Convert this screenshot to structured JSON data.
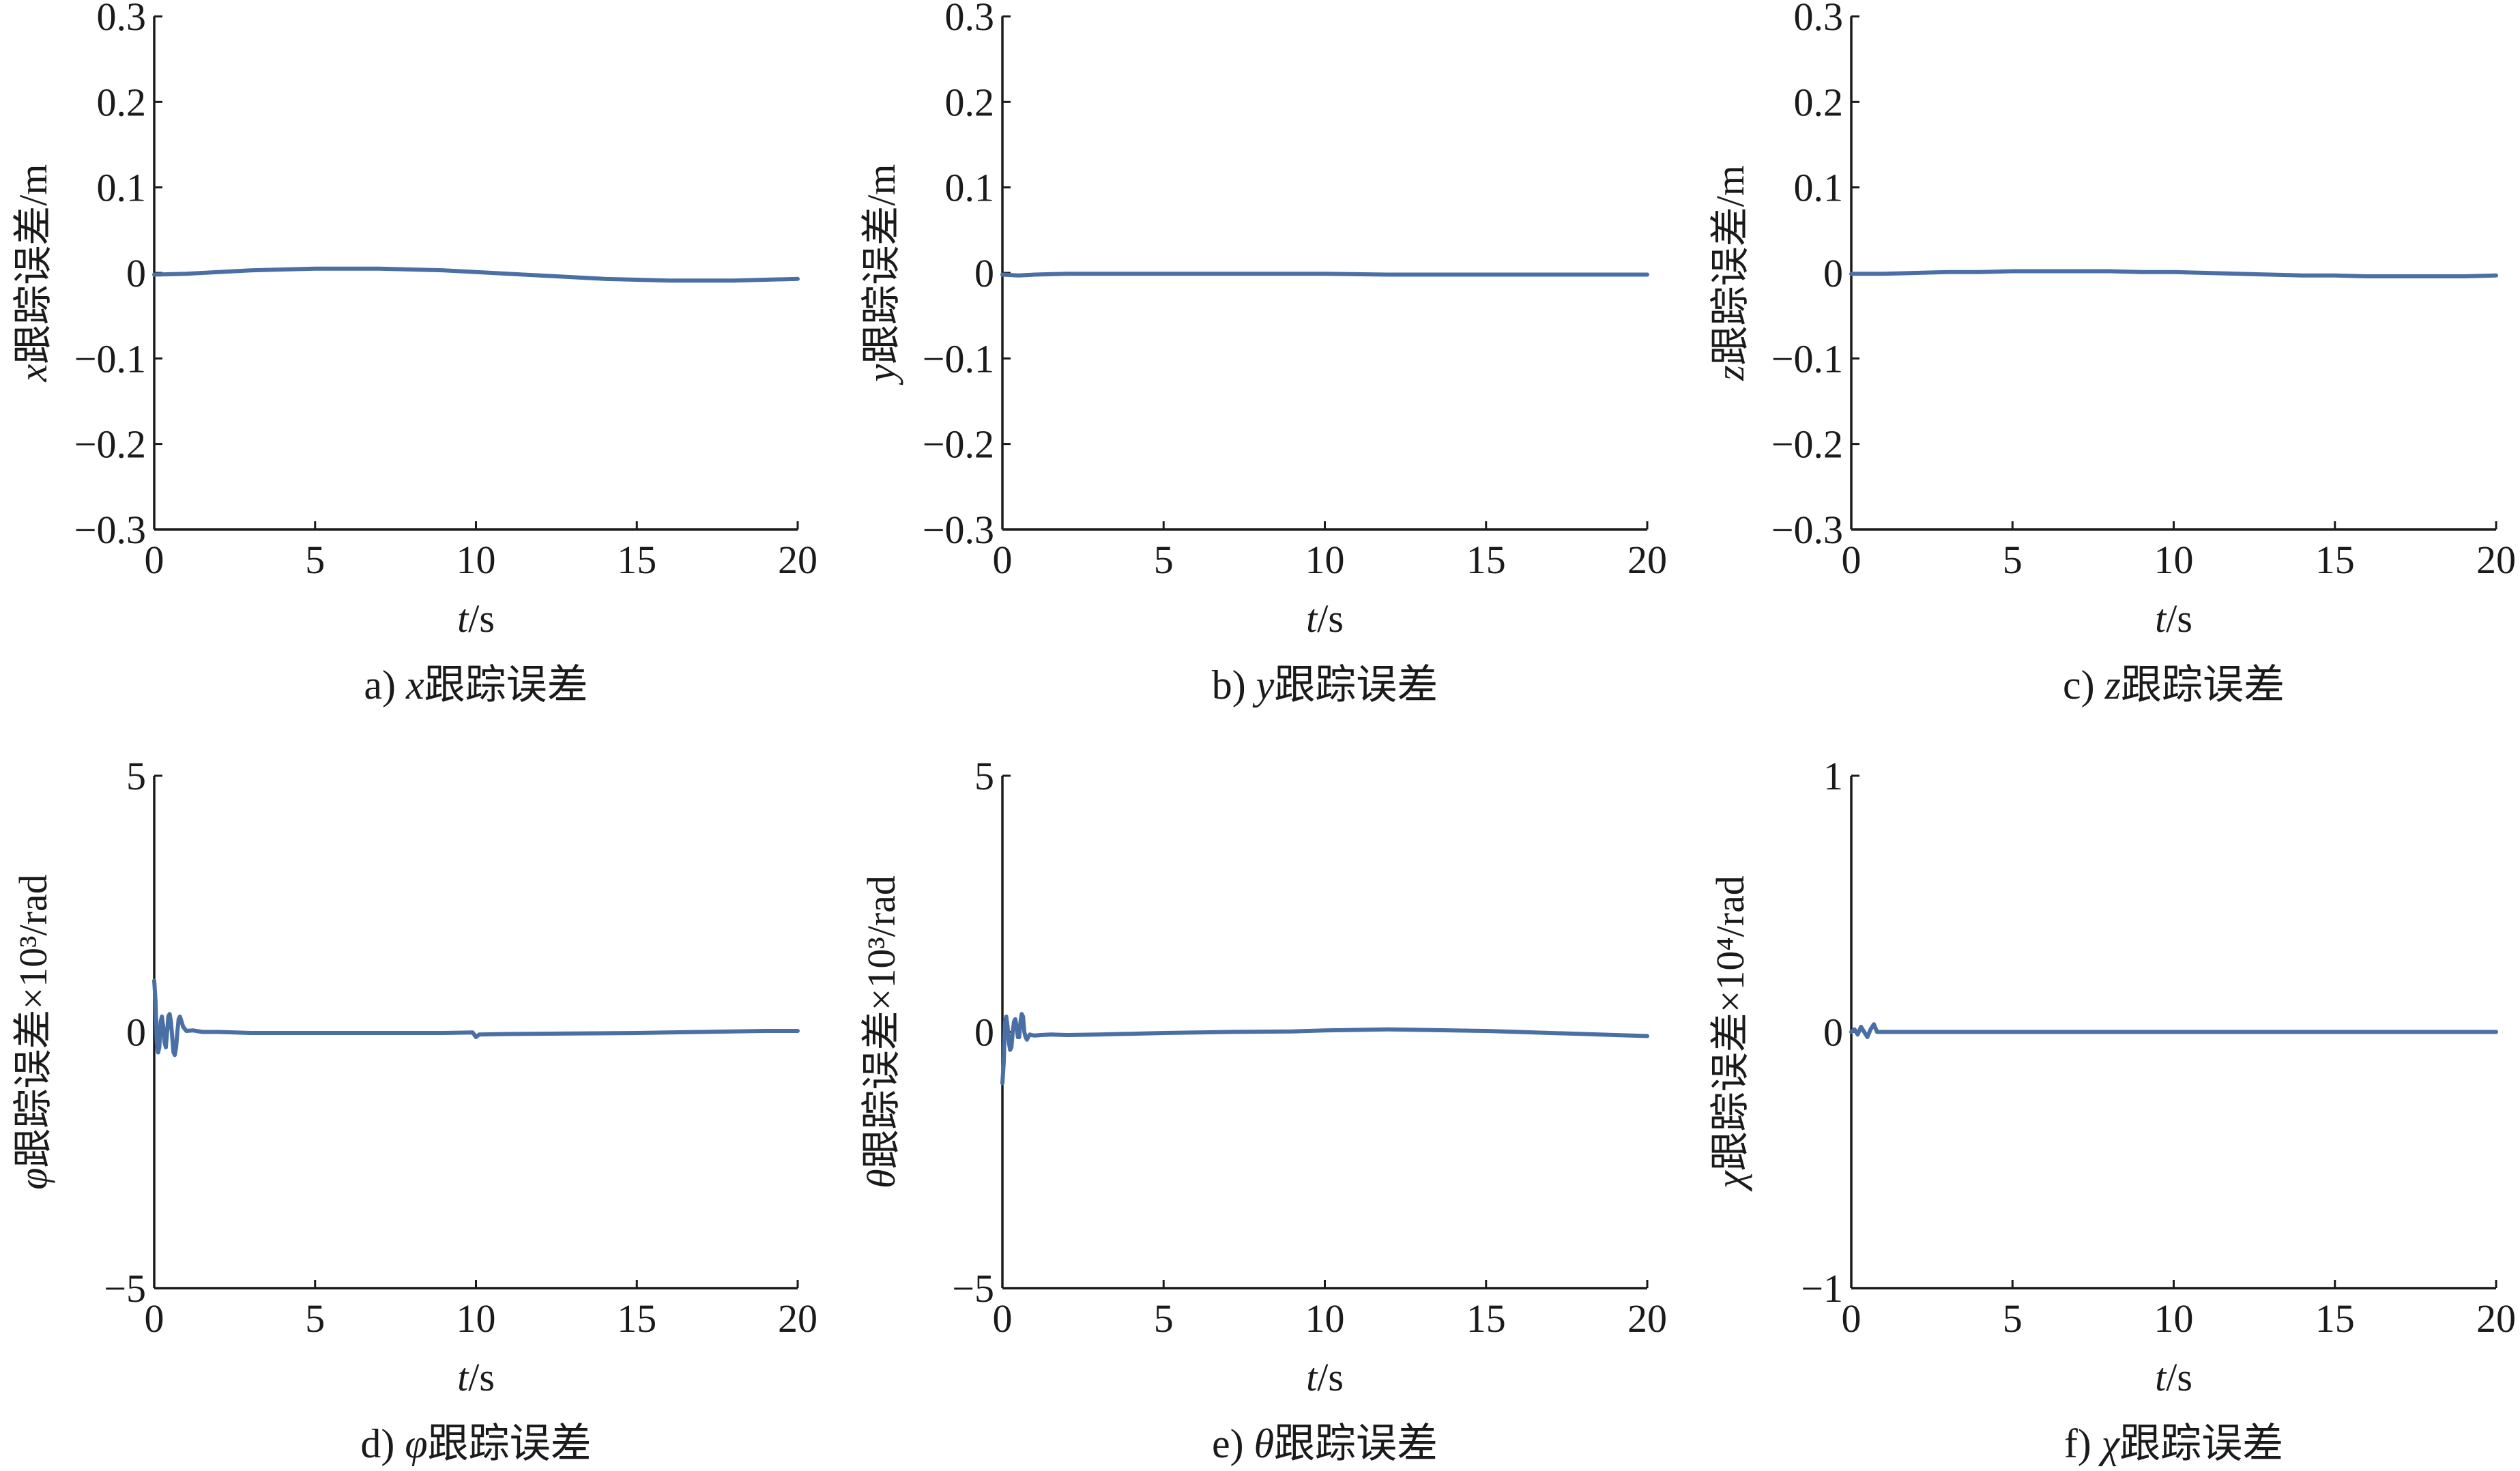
{
  "line_color": "#4a6fa5",
  "chart_data": [
    {
      "type": "line",
      "caption": "a) x跟踪误差",
      "xlabel": "t/s",
      "ylabel": "x跟踪误差/m",
      "xlim": [
        0,
        20
      ],
      "ylim": [
        -0.3,
        0.3
      ],
      "xticks": [
        0,
        5,
        10,
        15,
        20
      ],
      "xtick_labels": [
        "0",
        "5",
        "10",
        "15",
        "20"
      ],
      "yticks": [
        -0.3,
        -0.2,
        -0.1,
        0,
        0.1,
        0.2,
        0.3
      ],
      "ytick_labels": [
        "−0.3",
        "−0.2",
        "−0.1",
        "0",
        "0.1",
        "0.2",
        "0.3"
      ],
      "grid": false,
      "series": [
        {
          "x": [
            0,
            1,
            2,
            3,
            4,
            5,
            6,
            7,
            8,
            9,
            10,
            11,
            12,
            13,
            14,
            15,
            16,
            17,
            18,
            19,
            20
          ],
          "y": [
            -0.002,
            -0.001,
            0.001,
            0.003,
            0.004,
            0.005,
            0.005,
            0.005,
            0.004,
            0.003,
            0.001,
            -0.001,
            -0.003,
            -0.005,
            -0.007,
            -0.008,
            -0.009,
            -0.009,
            -0.009,
            -0.008,
            -0.007
          ]
        }
      ]
    },
    {
      "type": "line",
      "caption": "b) y跟踪误差",
      "xlabel": "t/s",
      "ylabel": "y跟踪误差/m",
      "xlim": [
        0,
        20
      ],
      "ylim": [
        -0.3,
        0.3
      ],
      "xticks": [
        0,
        5,
        10,
        15,
        20
      ],
      "xtick_labels": [
        "0",
        "5",
        "10",
        "15",
        "20"
      ],
      "yticks": [
        -0.3,
        -0.2,
        -0.1,
        0,
        0.1,
        0.2,
        0.3
      ],
      "ytick_labels": [
        "−0.3",
        "−0.2",
        "−0.1",
        "0",
        "0.1",
        "0.2",
        "0.3"
      ],
      "grid": false,
      "series": [
        {
          "x": [
            0,
            0.5,
            1,
            2,
            4,
            6,
            8,
            10,
            12,
            14,
            16,
            18,
            20
          ],
          "y": [
            -0.002,
            -0.003,
            -0.002,
            -0.001,
            -0.001,
            -0.001,
            -0.001,
            -0.001,
            -0.002,
            -0.002,
            -0.002,
            -0.002,
            -0.002
          ]
        }
      ]
    },
    {
      "type": "line",
      "caption": "c) z跟踪误差",
      "xlabel": "t/s",
      "ylabel": "z跟踪误差/m",
      "xlim": [
        0,
        20
      ],
      "ylim": [
        -0.3,
        0.3
      ],
      "xticks": [
        0,
        5,
        10,
        15,
        20
      ],
      "xtick_labels": [
        "0",
        "5",
        "10",
        "15",
        "20"
      ],
      "yticks": [
        -0.3,
        -0.2,
        -0.1,
        0,
        0.1,
        0.2,
        0.3
      ],
      "ytick_labels": [
        "−0.3",
        "−0.2",
        "−0.1",
        "0",
        "0.1",
        "0.2",
        "0.3"
      ],
      "grid": false,
      "series": [
        {
          "x": [
            0,
            1,
            2,
            3,
            4,
            5,
            6,
            7,
            8,
            9,
            10,
            11,
            12,
            13,
            14,
            15,
            16,
            17,
            18,
            19,
            20
          ],
          "y": [
            -0.001,
            -0.001,
            0.0,
            0.001,
            0.001,
            0.002,
            0.002,
            0.002,
            0.002,
            0.001,
            0.001,
            0.0,
            -0.001,
            -0.002,
            -0.003,
            -0.003,
            -0.004,
            -0.004,
            -0.004,
            -0.004,
            -0.003
          ]
        }
      ]
    },
    {
      "type": "line",
      "caption": "d) φ跟踪误差",
      "xlabel": "t/s",
      "ylabel": "φ跟踪误差×10³/rad",
      "xlim": [
        0,
        20
      ],
      "ylim": [
        -5,
        5
      ],
      "xticks": [
        0,
        5,
        10,
        15,
        20
      ],
      "xtick_labels": [
        "0",
        "5",
        "10",
        "15",
        "20"
      ],
      "yticks": [
        -5,
        0,
        5
      ],
      "ytick_labels": [
        "−5",
        "0",
        "5"
      ],
      "grid": false,
      "series": [
        {
          "x": [
            0,
            0.04,
            0.08,
            0.12,
            0.16,
            0.2,
            0.24,
            0.28,
            0.32,
            0.36,
            0.4,
            0.44,
            0.48,
            0.52,
            0.56,
            0.6,
            0.64,
            0.68,
            0.72,
            0.76,
            0.8,
            0.85,
            0.9,
            1.0,
            1.2,
            1.5,
            2,
            3,
            5,
            7,
            9,
            9.9,
            10,
            10.1,
            11,
            13,
            15,
            17,
            19,
            20
          ],
          "y": [
            1.0,
            0.6,
            -0.2,
            -0.4,
            -0.3,
            0.2,
            0.3,
            0.1,
            -0.2,
            -0.3,
            0.0,
            0.3,
            0.35,
            0.2,
            -0.1,
            -0.4,
            -0.45,
            -0.3,
            0.0,
            0.25,
            0.3,
            0.2,
            0.1,
            0.02,
            0.03,
            0.0,
            0.0,
            -0.02,
            -0.02,
            -0.02,
            -0.02,
            -0.01,
            -0.1,
            -0.05,
            -0.04,
            -0.03,
            -0.02,
            0.0,
            0.02,
            0.02
          ]
        }
      ]
    },
    {
      "type": "line",
      "caption": "e) θ跟踪误差",
      "xlabel": "t/s",
      "ylabel": "θ跟踪误差×10³/rad",
      "xlim": [
        0,
        20
      ],
      "ylim": [
        -5,
        5
      ],
      "xticks": [
        0,
        5,
        10,
        15,
        20
      ],
      "xtick_labels": [
        "0",
        "5",
        "10",
        "15",
        "20"
      ],
      "yticks": [
        -5,
        0,
        5
      ],
      "ytick_labels": [
        "−5",
        "0",
        "5"
      ],
      "grid": false,
      "series": [
        {
          "x": [
            0,
            0.04,
            0.08,
            0.12,
            0.16,
            0.2,
            0.24,
            0.28,
            0.32,
            0.36,
            0.4,
            0.44,
            0.48,
            0.52,
            0.56,
            0.6,
            0.64,
            0.68,
            0.72,
            0.76,
            0.8,
            0.85,
            0.9,
            1.0,
            1.2,
            1.5,
            2,
            3,
            5,
            7,
            9,
            10,
            11,
            12,
            13,
            15,
            17,
            19,
            20
          ],
          "y": [
            -1.0,
            -0.6,
            0.2,
            0.3,
            0.1,
            -0.2,
            -0.35,
            -0.3,
            0.0,
            0.2,
            0.25,
            0.1,
            -0.1,
            -0.1,
            0.2,
            0.35,
            0.3,
            0.0,
            -0.1,
            -0.15,
            -0.1,
            -0.05,
            -0.06,
            -0.07,
            -0.06,
            -0.05,
            -0.06,
            -0.05,
            -0.02,
            0.0,
            0.01,
            0.03,
            0.04,
            0.05,
            0.04,
            0.02,
            -0.02,
            -0.06,
            -0.08
          ]
        }
      ]
    },
    {
      "type": "line",
      "caption": "f) χ跟踪误差",
      "xlabel": "t/s",
      "ylabel": "χ跟踪误差×10⁴/rad",
      "xlim": [
        0,
        20
      ],
      "ylim": [
        -1,
        1
      ],
      "xticks": [
        0,
        5,
        10,
        15,
        20
      ],
      "xtick_labels": [
        "0",
        "5",
        "10",
        "15",
        "20"
      ],
      "yticks": [
        -1,
        0,
        1
      ],
      "ytick_labels": [
        "−1",
        "0",
        "1"
      ],
      "grid": false,
      "series": [
        {
          "x": [
            0,
            0.1,
            0.2,
            0.3,
            0.4,
            0.5,
            0.6,
            0.7,
            0.8,
            1.0,
            1.5,
            2,
            4,
            6,
            8,
            10,
            12,
            14,
            16,
            18,
            20
          ],
          "y": [
            0.0,
            0.01,
            -0.01,
            0.02,
            0.0,
            -0.02,
            0.01,
            0.03,
            0.0,
            0.0,
            0.0,
            0.0,
            0.0,
            0.0,
            0.0,
            0.0,
            0.0,
            0.0,
            0.0,
            0.0,
            0.0
          ]
        }
      ]
    }
  ]
}
